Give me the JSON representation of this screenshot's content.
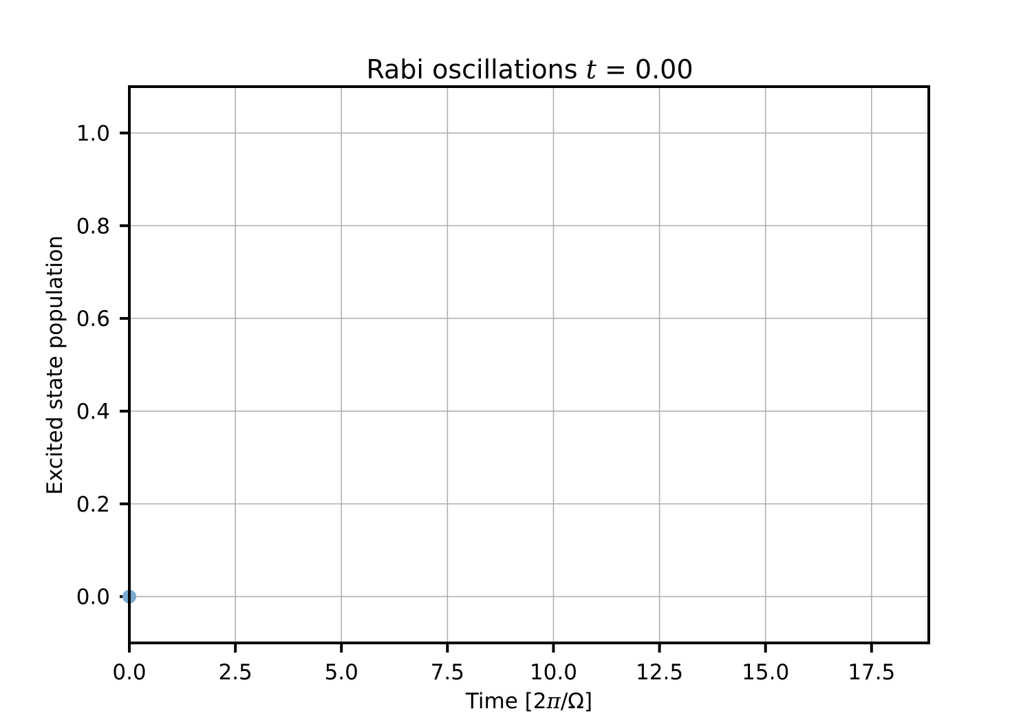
{
  "chart_data": {
    "type": "scatter",
    "title": {
      "prefix": "Rabi oscillations ",
      "variable": "t",
      "equals": " = ",
      "value": "0.00"
    },
    "xlabel": {
      "prefix": "Time [2",
      "symbol": "π",
      "suffix": "/Ω]"
    },
    "ylabel": "Excited state population",
    "xlim": [
      0,
      18.85
    ],
    "ylim": [
      -0.1,
      1.1
    ],
    "x_ticks": [
      0.0,
      2.5,
      5.0,
      7.5,
      10.0,
      12.5,
      15.0,
      17.5
    ],
    "x_tick_labels": [
      "0.0",
      "2.5",
      "5.0",
      "7.5",
      "10.0",
      "12.5",
      "15.0",
      "17.5"
    ],
    "y_ticks": [
      0.0,
      0.2,
      0.4,
      0.6,
      0.8,
      1.0
    ],
    "y_tick_labels": [
      "0.0",
      "0.2",
      "0.4",
      "0.6",
      "0.8",
      "1.0"
    ],
    "grid": true,
    "series": [
      {
        "x": [
          0.0
        ],
        "y": [
          0.0
        ],
        "color": "#7aa9cf"
      }
    ],
    "colors": {
      "grid": "#b0b0b0",
      "axes": "#000000",
      "marker": "#7aa9cf"
    }
  }
}
